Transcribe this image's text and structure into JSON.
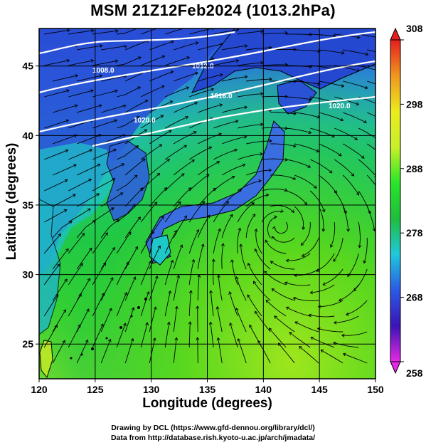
{
  "title": "MSM 21Z12Feb2024 (1013.2hPa)",
  "axes": {
    "xlabel": "Longitude (degrees)",
    "ylabel": "Latitude  (degrees)",
    "xticks": [
      "120",
      "125",
      "130",
      "135",
      "140",
      "145",
      "150"
    ],
    "yticks": [
      "25",
      "30",
      "35",
      "40",
      "45"
    ],
    "xlim": [
      120,
      150
    ],
    "ylim": [
      22.5,
      47.7
    ],
    "grid": true
  },
  "colorbar": {
    "min": 258,
    "max": 308,
    "ticks": [
      "258",
      "268",
      "278",
      "288",
      "298",
      "308"
    ],
    "colors": [
      "#e628e6",
      "#3a14b4",
      "#2a5ae6",
      "#20c8dc",
      "#1ebe3c",
      "#28e628",
      "#c8f028",
      "#ebeb1e",
      "#f0961e",
      "#e61e1e"
    ]
  },
  "contours": {
    "labels": [
      "1008.0",
      "1012.0",
      "1016.0",
      "1020.0",
      "1020.0"
    ],
    "color": "#ffffff"
  },
  "credits": {
    "line1": "Drawing by DCL (https://www.gfd-dennou.org/library/dcl/)",
    "line2": "Data from http://database.rish.kyoto-u.ac.jp/arch/jmadata/"
  }
}
